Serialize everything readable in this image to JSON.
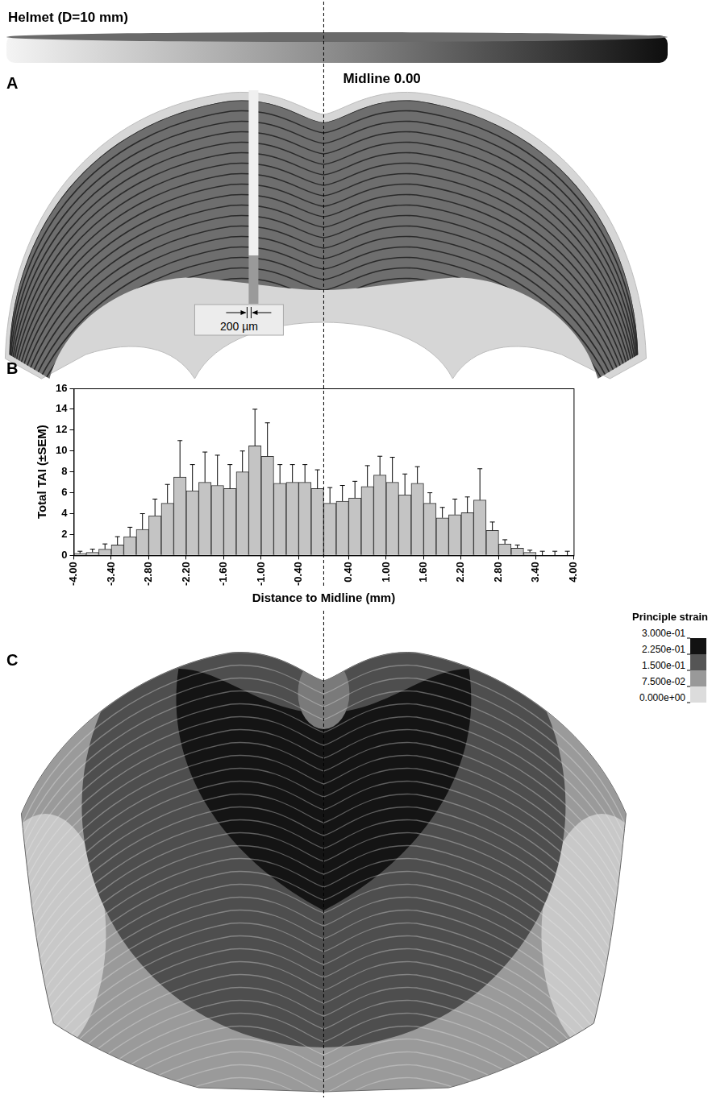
{
  "helmet": {
    "label": "Helmet (D=10 mm)"
  },
  "midline": {
    "label": "Midline 0.00",
    "value": 0
  },
  "panel_A": {
    "letter": "A",
    "scale_bar": "200 µm"
  },
  "panel_B": {
    "letter": "B"
  },
  "chart_data": {
    "type": "bar",
    "x_label": "Distance to Midline (mm)",
    "y_label": "Total TAI (±SEM)",
    "bins": [
      -4.0,
      -3.8,
      -3.6,
      -3.4,
      -3.2,
      -3.0,
      -2.8,
      -2.6,
      -2.4,
      -2.2,
      -2.0,
      -1.8,
      -1.6,
      -1.4,
      -1.2,
      -1.0,
      -0.8,
      -0.6,
      -0.4,
      -0.2,
      0.0,
      0.2,
      0.4,
      0.6,
      0.8,
      1.0,
      1.2,
      1.4,
      1.6,
      1.8,
      2.0,
      2.2,
      2.4,
      2.6,
      2.8,
      3.0,
      3.2,
      3.4,
      3.6,
      3.8,
      4.0
    ],
    "values": [
      0.2,
      0.3,
      0.6,
      1.0,
      1.8,
      2.5,
      3.8,
      5.0,
      7.5,
      6.2,
      7.0,
      6.7,
      6.4,
      8.0,
      10.5,
      9.5,
      6.9,
      7.0,
      7.0,
      6.4,
      5.0,
      5.2,
      5.5,
      6.6,
      7.7,
      7.0,
      5.8,
      6.9,
      5.0,
      3.6,
      3.9,
      4.1,
      5.3,
      2.4,
      1.1,
      0.7,
      0.3,
      0,
      0,
      0
    ],
    "errors": [
      0.2,
      0.3,
      0.5,
      0.8,
      0.9,
      1.5,
      1.6,
      1.8,
      3.5,
      2.5,
      2.9,
      2.9,
      2.3,
      2.0,
      3.5,
      3.2,
      1.8,
      1.7,
      1.7,
      1.8,
      1.5,
      1.5,
      1.6,
      2.0,
      1.8,
      2.4,
      2.0,
      1.6,
      1.0,
      1.0,
      1.5,
      1.5,
      3.0,
      0.8,
      0.4,
      0.3,
      0.2,
      0.4,
      0.4,
      0.4
    ],
    "color": "#c4c4c4",
    "xlim": [
      -4,
      4
    ],
    "ylim": [
      0,
      16
    ],
    "xticks": [
      {
        "value": -4,
        "label": "-4.00"
      },
      {
        "value": -3.4,
        "label": "-3.40"
      },
      {
        "value": -2.8,
        "label": "-2.80"
      },
      {
        "value": -2.2,
        "label": "-2.20"
      },
      {
        "value": -1.6,
        "label": "-1.60"
      },
      {
        "value": -1,
        "label": "-1.00"
      },
      {
        "value": -0.4,
        "label": "-0.40"
      },
      {
        "value": 0.4,
        "label": "0.40"
      },
      {
        "value": 1,
        "label": "1.00"
      },
      {
        "value": 1.6,
        "label": "1.60"
      },
      {
        "value": 2.2,
        "label": "2.20"
      },
      {
        "value": 2.8,
        "label": "2.80"
      },
      {
        "value": 3.4,
        "label": "3.40"
      },
      {
        "value": 4,
        "label": "4.00"
      }
    ],
    "yticks": [
      0,
      2,
      4,
      6,
      8,
      10,
      12,
      14,
      16
    ],
    "grid": false
  },
  "panel_C": {
    "letter": "C",
    "colorbar": {
      "title": "Principle strain",
      "range": [
        0,
        0.3
      ],
      "ticks": [
        {
          "value": 0.3,
          "label": "3.000e-01"
        },
        {
          "value": 0.225,
          "label": "2.250e-01"
        },
        {
          "value": 0.15,
          "label": "1.500e-01"
        },
        {
          "value": 0.075,
          "label": "7.500e-02"
        },
        {
          "value": 0,
          "label": "0.000e+00"
        }
      ]
    }
  }
}
